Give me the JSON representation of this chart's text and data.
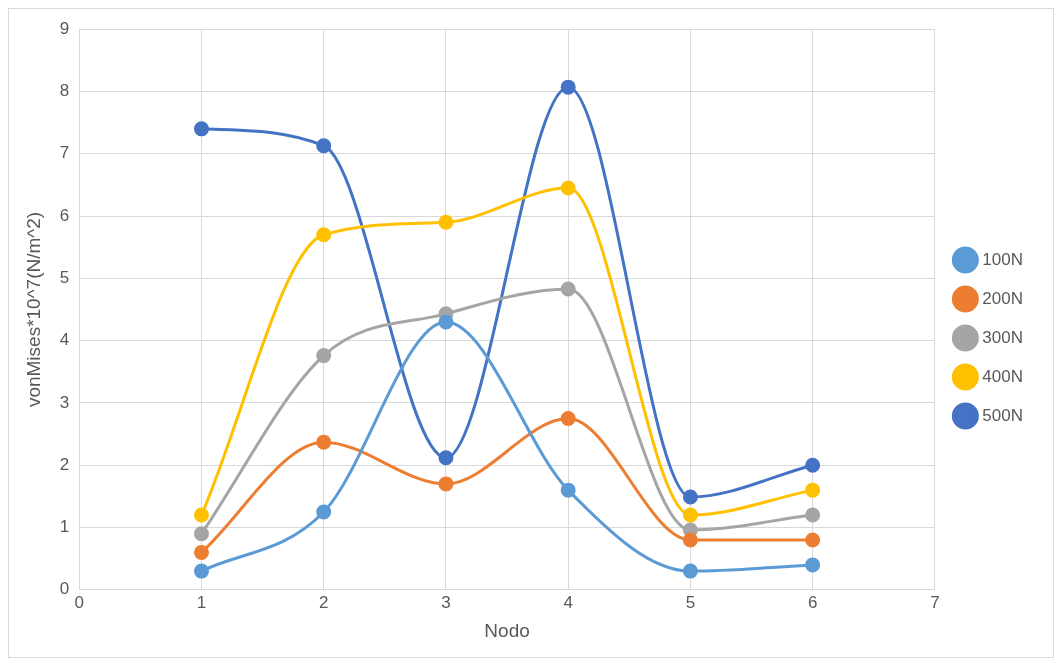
{
  "chart_data": {
    "type": "line",
    "xlabel": "Nodo",
    "ylabel": "vonMises*10^7(N/m^2)",
    "x": [
      1,
      2,
      3,
      4,
      5,
      6
    ],
    "series": [
      {
        "name": "100N",
        "color": "#5b9bd5",
        "values": [
          0.3,
          1.25,
          4.3,
          1.6,
          0.3,
          0.4
        ]
      },
      {
        "name": "200N",
        "color": "#ed7d31",
        "values": [
          0.6,
          2.37,
          1.7,
          2.75,
          0.8,
          0.8
        ]
      },
      {
        "name": "300N",
        "color": "#a5a5a5",
        "values": [
          0.9,
          3.76,
          4.43,
          4.83,
          0.96,
          1.2
        ]
      },
      {
        "name": "400N",
        "color": "#ffc000",
        "values": [
          1.2,
          5.7,
          5.9,
          6.45,
          1.2,
          1.6
        ]
      },
      {
        "name": "500N",
        "color": "#4472c4",
        "values": [
          7.4,
          7.13,
          2.12,
          8.07,
          1.49,
          2.0
        ]
      }
    ],
    "xlim": [
      0,
      7
    ],
    "xticks": [
      0,
      1,
      2,
      3,
      4,
      5,
      6,
      7
    ],
    "ylim": [
      0,
      9
    ],
    "yticks": [
      0,
      1,
      2,
      3,
      4,
      5,
      6,
      7,
      8,
      9
    ],
    "grid": true,
    "legend": "right",
    "marker": "circle",
    "line_style": "solid"
  }
}
